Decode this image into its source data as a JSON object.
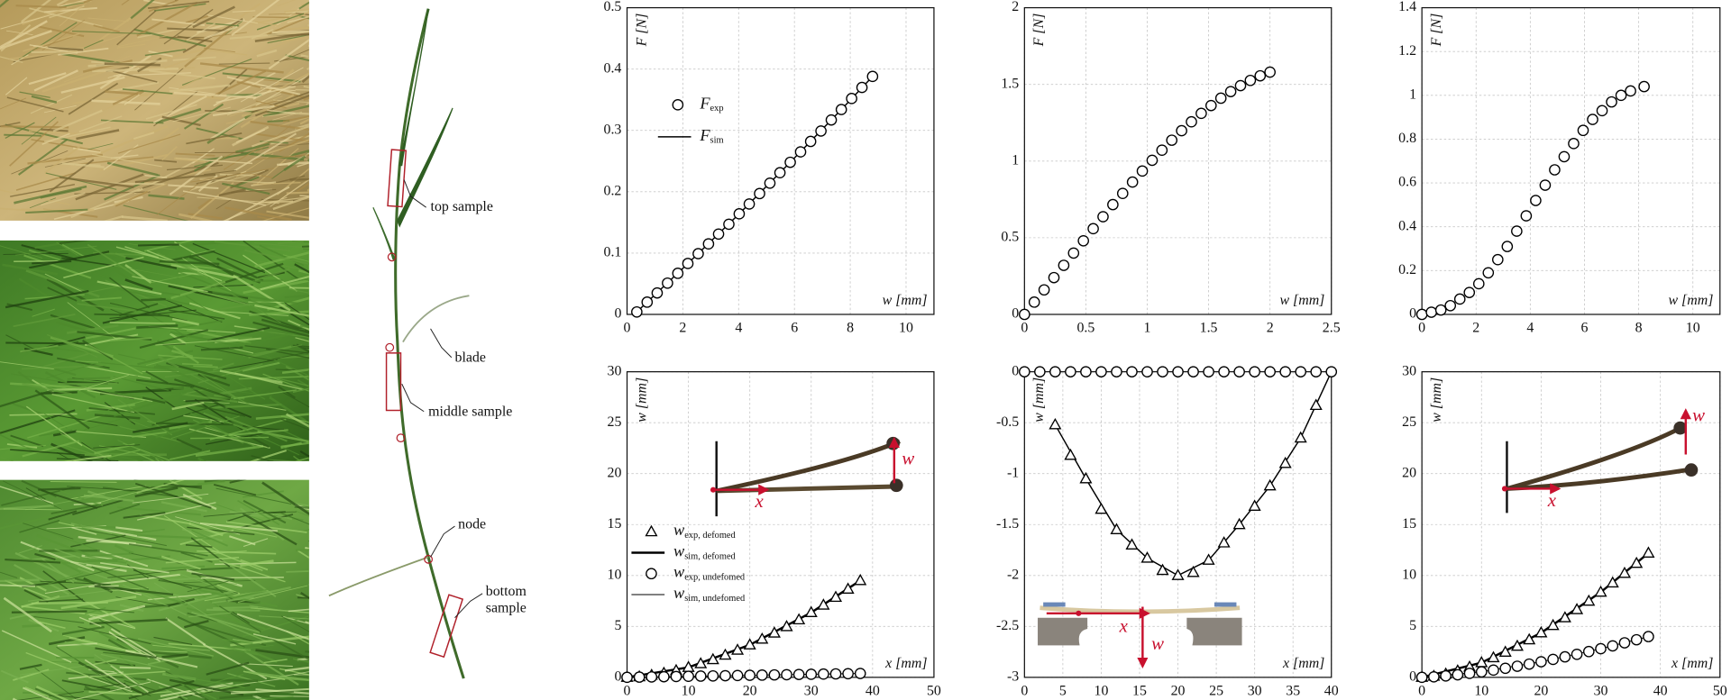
{
  "plant_labels": [
    [
      "top sample"
    ],
    [
      "blade"
    ],
    [
      "middle sample"
    ],
    [
      "node"
    ],
    [
      "bottom",
      "sample"
    ]
  ],
  "chart_data": [
    {
      "type": "scatter",
      "xlim": [
        0,
        11
      ],
      "xticks": [
        0,
        2,
        4,
        6,
        8,
        10
      ],
      "ylim": [
        0,
        0.5
      ],
      "yticks": [
        0,
        0.1,
        0.2,
        0.3,
        0.4,
        0.5
      ],
      "xlabel": "w [mm]",
      "ylabel": "F [N]",
      "grid": true,
      "legend": "upper left",
      "series": [
        {
          "name": "F",
          "sub": "exp",
          "marker": "circle",
          "color": "#000000",
          "x": [
            0.35,
            0.72,
            1.08,
            1.45,
            1.82,
            2.18,
            2.55,
            2.92,
            3.28,
            3.65,
            4.02,
            4.38,
            4.75,
            5.12,
            5.48,
            5.85,
            6.22,
            6.58,
            6.95,
            7.32,
            7.68,
            8.05,
            8.42,
            8.8
          ],
          "values": [
            0.004,
            0.02,
            0.035,
            0.051,
            0.067,
            0.083,
            0.099,
            0.115,
            0.131,
            0.147,
            0.164,
            0.18,
            0.197,
            0.214,
            0.231,
            0.248,
            0.265,
            0.282,
            0.299,
            0.317,
            0.334,
            0.352,
            0.37,
            0.388
          ]
        },
        {
          "name": "F",
          "sub": "sim",
          "marker": "line",
          "line_width": 1.2,
          "color": "#000000",
          "x": [
            0.35,
            2.18,
            4.02,
            5.85,
            7.68,
            8.8
          ],
          "values": [
            0.004,
            0.083,
            0.164,
            0.248,
            0.334,
            0.388
          ]
        }
      ]
    },
    {
      "type": "scatter",
      "xlim": [
        0,
        2.5
      ],
      "xticks": [
        0,
        0.5,
        1,
        1.5,
        2,
        2.5
      ],
      "ylim": [
        0,
        2
      ],
      "yticks": [
        0,
        0.5,
        1,
        1.5,
        2
      ],
      "xlabel": "w [mm]",
      "ylabel": "F [N]",
      "grid": true,
      "series": [
        {
          "marker": "circle",
          "color": "#000000",
          "x": [
            0,
            0.08,
            0.16,
            0.24,
            0.32,
            0.4,
            0.48,
            0.56,
            0.64,
            0.72,
            0.8,
            0.88,
            0.96,
            1.04,
            1.12,
            1.2,
            1.28,
            1.36,
            1.44,
            1.52,
            1.6,
            1.68,
            1.76,
            1.84,
            1.92,
            2
          ],
          "values": [
            0,
            0.08,
            0.16,
            0.24,
            0.32,
            0.4,
            0.48,
            0.559,
            0.637,
            0.716,
            0.789,
            0.863,
            0.935,
            1.005,
            1.071,
            1.136,
            1.198,
            1.256,
            1.311,
            1.362,
            1.41,
            1.453,
            1.492,
            1.526,
            1.556,
            1.58
          ]
        }
      ]
    },
    {
      "type": "scatter",
      "xlim": [
        0,
        11
      ],
      "xticks": [
        0,
        2,
        4,
        6,
        8,
        10
      ],
      "ylim": [
        0,
        1.4
      ],
      "yticks": [
        0,
        0.2,
        0.4,
        0.6,
        0.8,
        1,
        1.2,
        1.4
      ],
      "xlabel": "w [mm]",
      "ylabel": "F [N]",
      "grid": true,
      "series": [
        {
          "marker": "circle",
          "color": "#000000",
          "x": [
            0,
            0.35,
            0.7,
            1.05,
            1.4,
            1.75,
            2.1,
            2.45,
            2.8,
            3.15,
            3.5,
            3.85,
            4.2,
            4.55,
            4.9,
            5.25,
            5.6,
            5.95,
            6.3,
            6.65,
            7,
            7.35,
            7.7,
            8.2
          ],
          "values": [
            0,
            0.01,
            0.02,
            0.04,
            0.07,
            0.1,
            0.14,
            0.19,
            0.25,
            0.31,
            0.38,
            0.45,
            0.52,
            0.59,
            0.66,
            0.72,
            0.78,
            0.84,
            0.89,
            0.93,
            0.97,
            1,
            1.02,
            1.04
          ]
        }
      ]
    },
    {
      "type": "scatter",
      "xlim": [
        0,
        50
      ],
      "xticks": [
        0,
        10,
        20,
        30,
        40,
        50
      ],
      "ylim": [
        0,
        30
      ],
      "yticks": [
        0,
        5,
        10,
        15,
        20,
        25,
        30
      ],
      "xlabel": "x [mm]",
      "ylabel": "w [mm]",
      "grid": true,
      "legend": "center left",
      "annotations": [
        "x",
        "w"
      ],
      "series": [
        {
          "name": "w",
          "sub": "exp, defomed",
          "marker": "triangle",
          "color": "#000000",
          "x": [
            0,
            2,
            4,
            6,
            8,
            10,
            12,
            14,
            16,
            18,
            20,
            22,
            24,
            26,
            28,
            30,
            32,
            34,
            36,
            38
          ],
          "values": [
            0,
            0.06,
            0.21,
            0.41,
            0.67,
            0.98,
            1.34,
            1.74,
            2.18,
            2.67,
            3.19,
            3.75,
            4.35,
            4.98,
            5.65,
            6.36,
            7.09,
            7.86,
            8.66,
            9.5
          ]
        },
        {
          "name": "w",
          "sub": "sim, defomed",
          "marker": "line",
          "line_width": 2,
          "color": "#000000",
          "x": [
            0,
            10,
            20,
            30,
            38
          ],
          "values": [
            0,
            0.98,
            3.19,
            6.36,
            9.5
          ]
        },
        {
          "name": "w",
          "sub": "exp, undefomed",
          "marker": "circle",
          "color": "#000000",
          "x": [
            0,
            2,
            4,
            6,
            8,
            10,
            12,
            14,
            16,
            18,
            20,
            22,
            24,
            26,
            28,
            30,
            32,
            34,
            36,
            38
          ],
          "values": [
            0,
            0.02,
            0.04,
            0.06,
            0.08,
            0.1,
            0.12,
            0.14,
            0.16,
            0.18,
            0.2,
            0.22,
            0.24,
            0.26,
            0.28,
            0.3,
            0.32,
            0.34,
            0.36,
            0.38
          ]
        },
        {
          "name": "w",
          "sub": "sim, undefomed",
          "marker": "line",
          "line_width": 0.8,
          "color": "#000000",
          "x": [
            0,
            38
          ],
          "values": [
            0,
            0.38
          ]
        }
      ]
    },
    {
      "type": "scatter",
      "xlim": [
        0,
        40
      ],
      "xticks": [
        0,
        5,
        10,
        15,
        20,
        25,
        30,
        35,
        40
      ],
      "ylim": [
        -3,
        0
      ],
      "yticks": [
        -3,
        -2.5,
        -2,
        -1.5,
        -1,
        -0.5,
        0
      ],
      "xlabel": "x [mm]",
      "ylabel": "w [mm]",
      "grid": true,
      "annotations": [
        "x",
        "w"
      ],
      "series": [
        {
          "marker": "circle",
          "color": "#000000",
          "x": [
            0,
            2,
            4,
            6,
            8,
            10,
            12,
            14,
            16,
            18,
            20,
            22,
            24,
            26,
            28,
            30,
            32,
            34,
            36,
            38,
            40
          ],
          "values": [
            0,
            0,
            0,
            0,
            0,
            0,
            0,
            0,
            0,
            0,
            0,
            0,
            0,
            0,
            0,
            0,
            0,
            0,
            0,
            0,
            0
          ]
        },
        {
          "marker": "triangle",
          "color": "#000000",
          "x": [
            4,
            6,
            8,
            10,
            12,
            14,
            16,
            18,
            20,
            22,
            24,
            26,
            28,
            30,
            32,
            34,
            36,
            38
          ],
          "values": [
            -0.52,
            -0.82,
            -1.05,
            -1.35,
            -1.55,
            -1.7,
            -1.83,
            -1.95,
            -2,
            -1.97,
            -1.85,
            -1.68,
            -1.5,
            -1.32,
            -1.12,
            -0.9,
            -0.65,
            -0.33
          ]
        },
        {
          "marker": "line",
          "line_width": 1.2,
          "color": "#000000",
          "x": [
            4,
            8,
            12,
            16,
            20,
            24,
            28,
            32,
            36,
            40
          ],
          "values": [
            -0.52,
            -1.05,
            -1.55,
            -1.83,
            -2,
            -1.85,
            -1.5,
            -1.12,
            -0.65,
            0
          ]
        }
      ]
    },
    {
      "type": "scatter",
      "xlim": [
        0,
        50
      ],
      "xticks": [
        0,
        10,
        20,
        30,
        40,
        50
      ],
      "ylim": [
        0,
        30
      ],
      "yticks": [
        0,
        5,
        10,
        15,
        20,
        25,
        30
      ],
      "xlabel": "x [mm]",
      "ylabel": "w [mm]",
      "grid": true,
      "annotations": [
        "x",
        "w"
      ],
      "series": [
        {
          "marker": "triangle",
          "color": "#000000",
          "x": [
            0,
            2,
            4,
            6,
            8,
            10,
            12,
            14,
            16,
            18,
            20,
            22,
            24,
            26,
            28,
            30,
            32,
            34,
            36,
            38
          ],
          "values": [
            0,
            0.11,
            0.33,
            0.64,
            1.01,
            1.44,
            1.93,
            2.47,
            3.06,
            3.69,
            4.37,
            5.09,
            5.85,
            6.65,
            7.48,
            8.36,
            9.27,
            10.21,
            11.19,
            12.2
          ]
        },
        {
          "marker": "line",
          "line_width": 2,
          "color": "#000000",
          "x": [
            0,
            10,
            20,
            30,
            38
          ],
          "values": [
            0,
            1.44,
            4.37,
            8.36,
            12.2
          ]
        },
        {
          "marker": "circle",
          "color": "#000000",
          "x": [
            0,
            2,
            4,
            6,
            8,
            10,
            12,
            14,
            16,
            18,
            20,
            22,
            24,
            26,
            28,
            30,
            32,
            34,
            36,
            38
          ],
          "values": [
            0,
            0.05,
            0.14,
            0.25,
            0.39,
            0.54,
            0.71,
            0.89,
            1.09,
            1.3,
            1.53,
            1.76,
            2.01,
            2.26,
            2.53,
            2.81,
            3.09,
            3.39,
            3.69,
            4
          ]
        },
        {
          "marker": "line",
          "line_width": 0.8,
          "color": "#000000",
          "x": [
            0,
            10,
            20,
            30,
            38
          ],
          "values": [
            0,
            0.54,
            1.53,
            2.81,
            4
          ]
        }
      ]
    }
  ]
}
